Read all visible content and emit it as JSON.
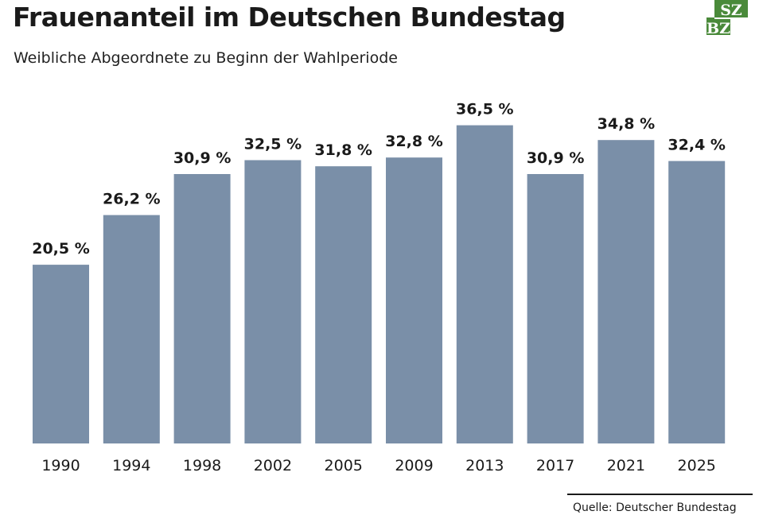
{
  "header": {
    "title": "Frauenanteil im Deutschen Bundestag",
    "subtitle": "Weibliche Abgeordnete zu Beginn der Wahlperiode"
  },
  "logo": {
    "top_text": "SZ",
    "bottom_text": "BZ",
    "color": "#4a8a3a"
  },
  "source": "Quelle: Deutscher Bundestag",
  "colors": {
    "bar": "#7a8fa8",
    "text": "#1a1a1a"
  },
  "chart_data": {
    "type": "bar",
    "title": "Frauenanteil im Deutschen Bundestag",
    "subtitle": "Weibliche Abgeordnete zu Beginn der Wahlperiode",
    "xlabel": "",
    "ylabel": "",
    "ylim": [
      0,
      40
    ],
    "grid": false,
    "categories": [
      "1990",
      "1994",
      "1998",
      "2002",
      "2005",
      "2009",
      "2013",
      "2017",
      "2021",
      "2025"
    ],
    "values": [
      20.5,
      26.2,
      30.9,
      32.5,
      31.8,
      32.8,
      36.5,
      30.9,
      34.8,
      32.4
    ],
    "labels": [
      "20,5 %",
      "26,2 %",
      "30,9 %",
      "32,5 %",
      "31,8 %",
      "32,8 %",
      "36,5 %",
      "30,9 %",
      "34,8 %",
      "32,4 %"
    ]
  }
}
